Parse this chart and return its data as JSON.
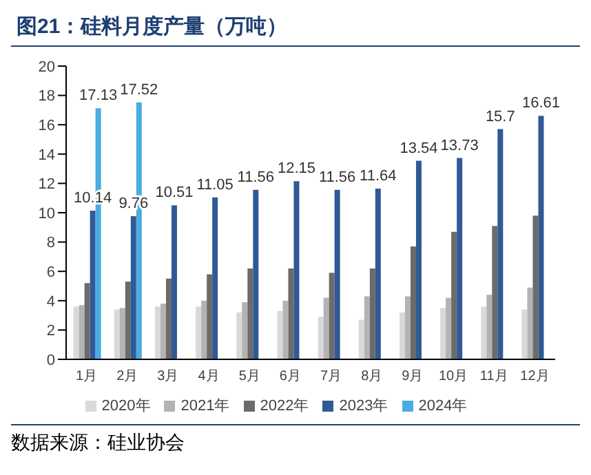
{
  "chart_data": {
    "type": "bar",
    "title": "图21：硅料月度产量（万吨）",
    "categories": [
      "1月",
      "2月",
      "3月",
      "4月",
      "5月",
      "6月",
      "7月",
      "8月",
      "9月",
      "10月",
      "11月",
      "12月"
    ],
    "series": [
      {
        "name": "2020年",
        "color": "#d9d9d9",
        "values": [
          3.6,
          3.4,
          3.6,
          3.6,
          3.2,
          3.3,
          2.9,
          2.7,
          3.2,
          3.5,
          3.6,
          3.4
        ]
      },
      {
        "name": "2021年",
        "color": "#b3b3b3",
        "values": [
          3.7,
          3.5,
          3.8,
          4.0,
          3.9,
          4.0,
          4.2,
          4.3,
          4.3,
          4.2,
          4.4,
          4.9
        ]
      },
      {
        "name": "2022年",
        "color": "#6b6b6b",
        "values": [
          5.2,
          5.3,
          5.5,
          5.8,
          6.2,
          6.2,
          5.9,
          6.2,
          7.7,
          8.7,
          9.1,
          9.8
        ]
      },
      {
        "name": "2023年",
        "color": "#2f5a96",
        "values": [
          10.14,
          9.76,
          10.51,
          11.05,
          11.56,
          12.15,
          11.56,
          11.64,
          13.54,
          13.73,
          15.7,
          16.61
        ],
        "value_labels": [
          "10.14",
          "9.76",
          "10.51",
          "11.05",
          "11.56",
          "12.15",
          "11.56",
          "11.64",
          "13.54",
          "13.73",
          "15.7",
          "16.61"
        ]
      },
      {
        "name": "2024年",
        "color": "#4bacdf",
        "values": [
          17.13,
          17.52,
          null,
          null,
          null,
          null,
          null,
          null,
          null,
          null,
          null,
          null
        ],
        "value_labels": [
          "17.13",
          "17.52",
          null,
          null,
          null,
          null,
          null,
          null,
          null,
          null,
          null,
          null
        ]
      }
    ],
    "ylim": [
      0,
      20
    ],
    "yticks": [
      0,
      2,
      4,
      6,
      8,
      10,
      12,
      14,
      16,
      18,
      20
    ],
    "grid": false,
    "legend": "bottom",
    "annotations": [
      "数据来源：硅业协会"
    ]
  }
}
